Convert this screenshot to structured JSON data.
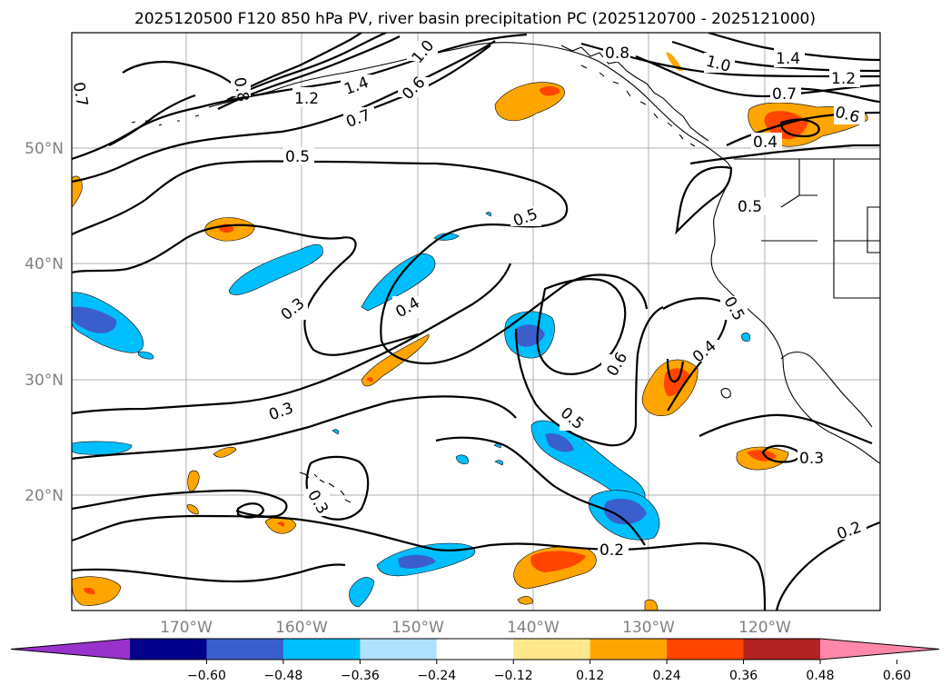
{
  "title": "2025120500 F120 850 hPa PV, river basin precipitation PC (2025120700 - 2025121000)",
  "lat_labels": [
    "50°N",
    "40°N",
    "30°N",
    "20°N"
  ],
  "lon_labels": [
    "170°W",
    "160°W",
    "150°W",
    "140°W",
    "130°W",
    "120°W"
  ],
  "contour_labels": {
    "c07a": "0.7",
    "c08a": "0.8",
    "c12a": "1.2",
    "c14a": "1.4",
    "c10a": "1.0",
    "c06a": "0.6",
    "c07b": "0.7",
    "c08b": "0.8",
    "c10b": "1.0",
    "c14b": "1.4",
    "c12b": "1.2",
    "c07c": "0.7",
    "c06b": "0.6",
    "c04a": "0.4",
    "c05a": "0.5",
    "c05b": "0.5",
    "c05c": "0.5",
    "c05d": "0.5",
    "c03a": "0.3",
    "c04b": "0.4",
    "c06c": "0.6",
    "c04c": "0.4",
    "c05e": "0.5",
    "c03b": "0.3",
    "c03c": "0.3",
    "c02a": "0.2",
    "c02b": "0.2",
    "c03d": "0.3"
  },
  "colorbar": {
    "colors": [
      "#9932cc",
      "#00008b",
      "#3a5fcd",
      "#00bfff",
      "#b0e2ff",
      "#ffffff",
      "#ffe88c",
      "#ffa500",
      "#ff4500",
      "#b22222",
      "#ff88aa"
    ],
    "tick_labels": [
      "−0.60",
      "−0.48",
      "−0.36",
      "−0.24",
      "−0.12",
      "0.12",
      "0.24",
      "0.36",
      "0.48",
      "0.60"
    ]
  }
}
